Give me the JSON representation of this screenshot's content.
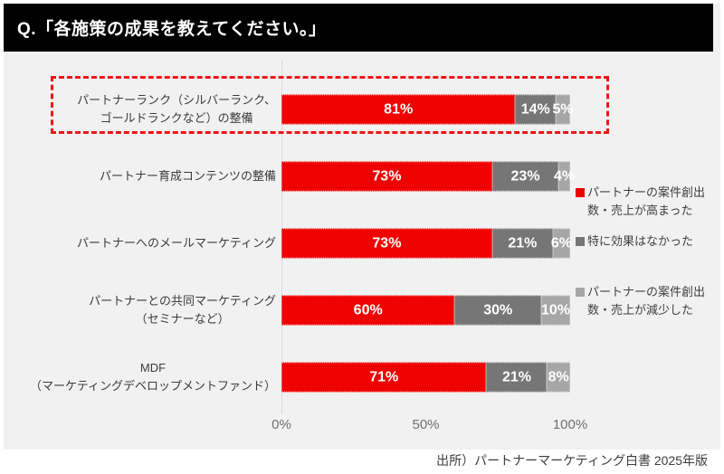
{
  "banner": {
    "title": "Q.「各施策の成果を教えてください。」"
  },
  "source": "出所）パートナーマーケティング白書 2025年版",
  "colors": {
    "banner_bg": "#000000",
    "panel_bg": "#f1f1f1",
    "increase_red": "#ee0202",
    "no_effect_gray": "#767676",
    "decrease_light_gray": "#a6a6a6",
    "highlight_dashed_red": "#ef1515",
    "gridline": "#d9d9d9"
  },
  "legend": [
    {
      "label": "パートナーの案件創出\n数・売上が高まった",
      "color": "#ee0202"
    },
    {
      "label": "特に効果はなかった",
      "color": "#767676"
    },
    {
      "label": "パートナーの案件創出\n数・売上が減少した",
      "color": "#a6a6a6"
    }
  ],
  "x_axis": {
    "ticks": [
      {
        "label": "0%",
        "value": 0
      },
      {
        "label": "50%",
        "value": 50
      },
      {
        "label": "100%",
        "value": 100
      }
    ]
  },
  "chart_data": {
    "type": "bar",
    "orientation": "horizontal",
    "stacked": true,
    "title": "Q.「各施策の成果を教えてください。」",
    "xlabel": "",
    "ylabel": "",
    "xlim": [
      0,
      100
    ],
    "grid": "x-axis-zero-line-only",
    "legend_position": "right",
    "highlighted_category_index": 0,
    "categories": [
      "パートナーランク（シルバーランク、\nゴールドランクなど）の整備",
      "パートナー育成コンテンツの整備",
      "パートナーへのメールマーケティング",
      "パートナーとの共同マーケティング\n（セミナーなど）",
      "MDF\n（マーケティングデベロップメントファンド）"
    ],
    "series": [
      {
        "name": "パートナーの案件創出数・売上が高まった",
        "color": "#ee0202",
        "values": [
          81,
          73,
          73,
          60,
          71
        ]
      },
      {
        "name": "特に効果はなかった",
        "color": "#767676",
        "values": [
          14,
          23,
          21,
          30,
          21
        ]
      },
      {
        "name": "パートナーの案件創出数・売上が減少した",
        "color": "#a6a6a6",
        "values": [
          5,
          4,
          6,
          10,
          8
        ]
      }
    ],
    "data_label_format": "{value}%"
  }
}
